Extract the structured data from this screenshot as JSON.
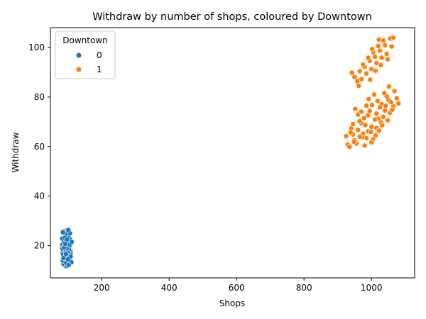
{
  "chart_data": {
    "type": "scatter",
    "title": "Withdraw by number of shops, coloured by Downtown",
    "xlabel": "Shops",
    "ylabel": "Withdraw",
    "xlim": [
      48,
      1128
    ],
    "ylim": [
      7,
      108
    ],
    "x_ticks": [
      200,
      400,
      600,
      800,
      1000
    ],
    "y_ticks": [
      20,
      40,
      60,
      80,
      100
    ],
    "grid": false,
    "legend": {
      "title": "Downtown",
      "placement": "top-left"
    },
    "series": [
      {
        "name": "0",
        "color": "#1f77b4",
        "points": [
          [
            92,
            18.5
          ],
          [
            98,
            16.2
          ],
          [
            86,
            21.0
          ],
          [
            104,
            14.8
          ],
          [
            95,
            23.5
          ],
          [
            88,
            13.1
          ],
          [
            101,
            19.8
          ],
          [
            93,
            25.2
          ],
          [
            84,
            17.0
          ],
          [
            108,
            16.9
          ],
          [
            97,
            12.3
          ],
          [
            90,
            22.4
          ],
          [
            99,
            20.6
          ],
          [
            87,
            15.4
          ],
          [
            102,
            24.1
          ],
          [
            94,
            11.7
          ],
          [
            85,
            19.2
          ],
          [
            106,
            13.9
          ],
          [
            96,
            26.1
          ],
          [
            89,
            16.7
          ],
          [
            100,
            21.9
          ],
          [
            91,
            14.2
          ],
          [
            103,
            17.8
          ],
          [
            83,
            20.3
          ],
          [
            98,
            24.8
          ],
          [
            92,
            12.9
          ],
          [
            107,
            18.1
          ],
          [
            88,
            23.0
          ],
          [
            95,
            15.9
          ],
          [
            101,
            13.4
          ],
          [
            86,
            25.7
          ],
          [
            94,
            19.5
          ],
          [
            105,
            22.7
          ],
          [
            90,
            17.4
          ],
          [
            97,
            14.6
          ],
          [
            84,
            18.8
          ],
          [
            109,
            20.9
          ],
          [
            93,
            16.1
          ],
          [
            99,
            25.9
          ],
          [
            87,
            12.6
          ],
          [
            102,
            15.2
          ],
          [
            96,
            21.3
          ],
          [
            91,
            24.4
          ],
          [
            104,
            19.1
          ],
          [
            85,
            14.0
          ],
          [
            100,
            23.8
          ],
          [
            89,
            20.0
          ],
          [
            98,
            13.6
          ],
          [
            94,
            17.6
          ],
          [
            106,
            25.0
          ],
          [
            92,
            22.1
          ],
          [
            86,
            16.4
          ],
          [
            103,
            18.4
          ],
          [
            97,
            11.9
          ],
          [
            90,
            19.9
          ],
          [
            101,
            26.3
          ],
          [
            88,
            21.6
          ],
          [
            95,
            13.0
          ],
          [
            108,
            15.6
          ],
          [
            83,
            22.9
          ],
          [
            99,
            17.2
          ],
          [
            93,
            24.6
          ],
          [
            104,
            20.1
          ],
          [
            87,
            15.0
          ],
          [
            96,
            18.9
          ],
          [
            110,
            13.3
          ],
          [
            91,
            23.2
          ],
          [
            85,
            25.4
          ],
          [
            100,
            14.4
          ],
          [
            94,
            16.6
          ],
          [
            111,
            21.6
          ],
          [
            89,
            19.4
          ],
          [
            97,
            22.5
          ],
          [
            102,
            12.2
          ],
          [
            92,
            20.7
          ]
        ]
      },
      {
        "name": "1",
        "color": "#ff7f0e",
        "points": [
          [
            950,
            62.5
          ],
          [
            975,
            65.1
          ],
          [
            1000,
            68.0
          ],
          [
            1020,
            71.2
          ],
          [
            1040,
            74.5
          ],
          [
            960,
            66.8
          ],
          [
            985,
            63.4
          ],
          [
            1010,
            70.9
          ],
          [
            930,
            60.8
          ],
          [
            945,
            64.9
          ],
          [
            990,
            72.6
          ],
          [
            1030,
            77.1
          ],
          [
            1050,
            78.9
          ],
          [
            1065,
            76.2
          ],
          [
            1075,
            79.5
          ],
          [
            970,
            69.4
          ],
          [
            995,
            74.3
          ],
          [
            1015,
            67.5
          ],
          [
            1025,
            75.8
          ],
          [
            955,
            61.2
          ],
          [
            980,
            60.4
          ],
          [
            1005,
            62.9
          ],
          [
            1035,
            72.0
          ],
          [
            1045,
            80.3
          ],
          [
            940,
            67.3
          ],
          [
            965,
            70.2
          ],
          [
            990,
            66.1
          ],
          [
            1012,
            64.5
          ],
          [
            1028,
            69.8
          ],
          [
            1055,
            73.7
          ],
          [
            935,
            59.9
          ],
          [
            948,
            61.9
          ],
          [
            972,
            63.8
          ],
          [
            998,
            65.9
          ],
          [
            1018,
            78.4
          ],
          [
            1038,
            81.6
          ],
          [
            1008,
            81.0
          ],
          [
            985,
            76.5
          ],
          [
            960,
            72.9
          ],
          [
            945,
            69.1
          ],
          [
            925,
            64.2
          ],
          [
            970,
            74.1
          ],
          [
            1000,
            61.7
          ],
          [
            1022,
            66.4
          ],
          [
            1048,
            70.6
          ],
          [
            1062,
            74.9
          ],
          [
            1080,
            77.4
          ],
          [
            1052,
            84.2
          ],
          [
            1068,
            82.4
          ],
          [
            992,
            79.2
          ],
          [
            1032,
            68.6
          ],
          [
            1042,
            76.4
          ],
          [
            978,
            71.5
          ],
          [
            952,
            75.2
          ],
          [
            1002,
            76.8
          ],
          [
            965,
            64.0
          ],
          [
            1015,
            73.3
          ],
          [
            938,
            65.7
          ],
          [
            982,
            68.7
          ],
          [
            1058,
            77.9
          ],
          [
            950,
            88.1
          ],
          [
            965,
            90.4
          ],
          [
            980,
            92.2
          ],
          [
            995,
            94.6
          ],
          [
            1010,
            96.3
          ],
          [
            1025,
            98.7
          ],
          [
            1040,
            100.9
          ],
          [
            1055,
            103.6
          ],
          [
            970,
            87.2
          ],
          [
            985,
            89.5
          ],
          [
            1000,
            91.3
          ],
          [
            1015,
            93.7
          ],
          [
            1030,
            95.9
          ],
          [
            1045,
            97.4
          ],
          [
            1060,
            100.4
          ],
          [
            975,
            93.1
          ],
          [
            990,
            95.8
          ],
          [
            1005,
            98.1
          ],
          [
            1020,
            100.6
          ],
          [
            1035,
            102.8
          ],
          [
            958,
            86.4
          ],
          [
            1012,
            90.6
          ],
          [
            1028,
            92.9
          ],
          [
            1048,
            95.2
          ],
          [
            996,
            87.0
          ],
          [
            942,
            89.8
          ],
          [
            1065,
            103.9
          ],
          [
            962,
            84.5
          ],
          [
            1022,
            103.2
          ],
          [
            1002,
            99.4
          ]
        ]
      }
    ]
  }
}
